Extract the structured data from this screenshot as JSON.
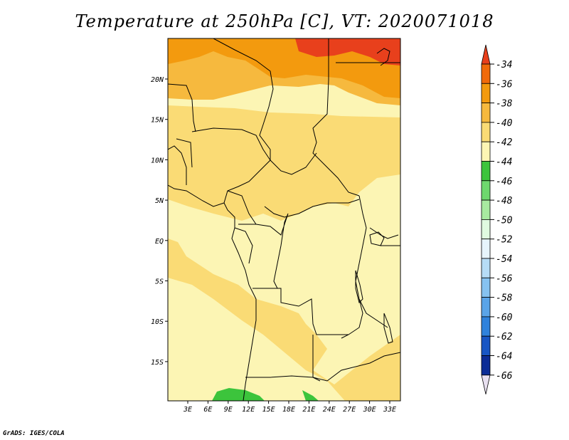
{
  "title": "Temperature at 250hPa [C], VT: 2020071018",
  "credit": "GrADS: IGES/COLA",
  "lon_labels": [
    "3E",
    "6E",
    "9E",
    "12E",
    "15E",
    "18E",
    "21E",
    "24E",
    "27E",
    "30E",
    "33E"
  ],
  "lat_labels": [
    "20N",
    "15N",
    "10N",
    "5N",
    "EQ",
    "5S",
    "10S",
    "15S"
  ],
  "colorbar": {
    "levels": [
      "-34",
      "-36",
      "-38",
      "-40",
      "-42",
      "-44",
      "-46",
      "-48",
      "-50",
      "-52",
      "-54",
      "-56",
      "-58",
      "-60",
      "-62",
      "-64",
      "-66"
    ],
    "colors": [
      "#e8401c",
      "#f06a0a",
      "#f39a0e",
      "#f6b93e",
      "#fadb75",
      "#fcf5b4",
      "#3cc43c",
      "#6ed86e",
      "#a8eaa0",
      "#e0fae0",
      "#e6f4fc",
      "#b6dcf6",
      "#86c2f0",
      "#5aa4e8",
      "#2f82dc",
      "#1856c4",
      "#0c2c96",
      "#050c60"
    ]
  },
  "map": {
    "extent": {
      "lon_min": 0,
      "lon_max": 35,
      "lat_min": -20,
      "lat_max": 25
    },
    "field_colors": {
      "c34": "#e8401c",
      "c36": "#f39a0e",
      "c38": "#f6b93e",
      "c40": "#fadb75",
      "c42": "#fcf5b4",
      "c44": "#3cc43c"
    }
  }
}
